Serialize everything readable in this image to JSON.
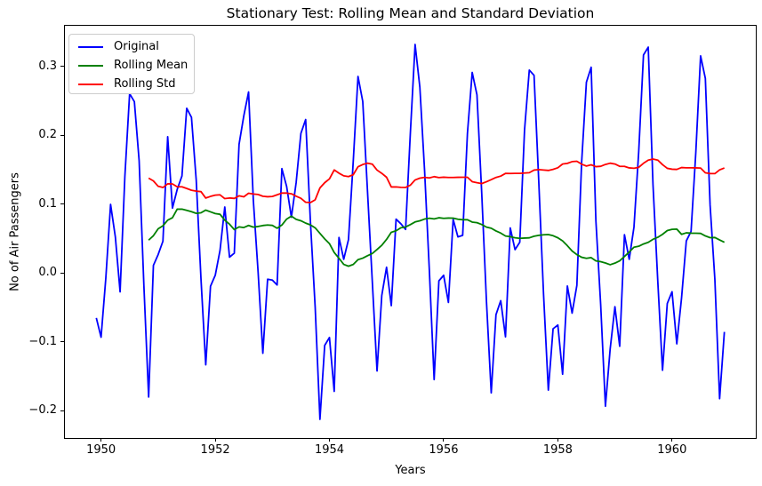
{
  "chart_data": {
    "type": "line",
    "title": "Stationary Test: Rolling Mean and Standard Deviation",
    "xlabel": "Years",
    "ylabel": "No of Air Passengers",
    "xlim": [
      1949.3667,
      1961.4667
    ],
    "ylim": [
      -0.2399,
      0.3588
    ],
    "x0": 1949.9167,
    "dx": 0.0833333,
    "grid": false,
    "legend_position": "upper left",
    "rolling_window_months": 12,
    "xticks": [
      {
        "value": 1950,
        "label": "1950"
      },
      {
        "value": 1952,
        "label": "1952"
      },
      {
        "value": 1954,
        "label": "1954"
      },
      {
        "value": 1956,
        "label": "1956"
      },
      {
        "value": 1958,
        "label": "1958"
      },
      {
        "value": 1960,
        "label": "1960"
      }
    ],
    "yticks": [
      {
        "value": 0.3,
        "label": "0.3"
      },
      {
        "value": 0.2,
        "label": "0.2"
      },
      {
        "value": 0.1,
        "label": "0.1"
      },
      {
        "value": 0.0,
        "label": "0.0"
      },
      {
        "value": -0.1,
        "label": "−0.1"
      },
      {
        "value": -0.2,
        "label": "−0.2"
      }
    ],
    "series": [
      {
        "name": "Original",
        "color": "#0000ff",
        "start_offset": 0,
        "values": [
          -0.0655,
          -0.0935,
          -0.0076,
          0.0994,
          0.0522,
          -0.0276,
          0.1398,
          0.2602,
          0.2486,
          0.1629,
          -0.0186,
          -0.1804,
          0.0108,
          0.0266,
          0.0459,
          0.1977,
          0.094,
          0.1211,
          0.1406,
          0.239,
          0.2258,
          0.1347,
          -0.009,
          -0.1336,
          -0.0194,
          -0.0035,
          0.0326,
          0.0956,
          0.0227,
          0.0285,
          0.1866,
          0.2281,
          0.2626,
          0.1054,
          0.0017,
          -0.1168,
          -0.0093,
          -0.0105,
          -0.0176,
          0.1513,
          0.1254,
          0.0808,
          0.1311,
          0.2025,
          0.2226,
          0.0744,
          -0.0501,
          -0.2128,
          -0.1054,
          -0.0939,
          -0.1722,
          0.0514,
          0.0197,
          0.0482,
          0.1619,
          0.2852,
          0.2488,
          0.118,
          -0.0119,
          -0.1425,
          -0.0328,
          0.0081,
          -0.0476,
          0.0779,
          0.0713,
          0.0631,
          0.2025,
          0.3316,
          0.2696,
          0.1478,
          0.0029,
          -0.155,
          -0.0117,
          -0.0036,
          -0.043,
          0.0776,
          0.0522,
          0.0545,
          0.2024,
          0.291,
          0.2586,
          0.1161,
          -0.0417,
          -0.1743,
          -0.0608,
          -0.0405,
          -0.0929,
          0.0652,
          0.0337,
          0.0445,
          0.2073,
          0.2944,
          0.2868,
          0.1311,
          -0.0314,
          -0.1703,
          -0.0813,
          -0.0758,
          -0.1472,
          -0.0191,
          -0.0585,
          -0.0182,
          0.1602,
          0.2768,
          0.2985,
          0.0753,
          -0.0457,
          -0.1937,
          -0.1105,
          -0.0492,
          -0.1066,
          0.0554,
          0.0197,
          0.0664,
          0.1763,
          0.3164,
          0.3278,
          0.128,
          -0.0113,
          -0.1415,
          -0.0445,
          -0.0275,
          -0.1031,
          -0.0365,
          0.0463,
          0.0602,
          0.1751,
          0.3151,
          0.2824,
          0.0982,
          -0.0092,
          -0.1827,
          -0.0858
        ]
      },
      {
        "name": "Rolling Mean",
        "color": "#008000",
        "start_offset": 11,
        "values": [
          0.0475,
          0.0539,
          0.0639,
          0.0683,
          0.0765,
          0.08,
          0.0924,
          0.0925,
          0.0907,
          0.0888,
          0.0864,
          0.0872,
          0.0911,
          0.0886,
          0.0861,
          0.085,
          0.0765,
          0.0706,
          0.0628,
          0.0667,
          0.0658,
          0.0688,
          0.0664,
          0.0673,
          0.0687,
          0.0695,
          0.0689,
          0.0648,
          0.0694,
          0.078,
          0.0823,
          0.0777,
          0.0756,
          0.0722,
          0.0696,
          0.0653,
          0.0573,
          0.0493,
          0.0424,
          0.0295,
          0.0212,
          0.0123,
          0.0096,
          0.0122,
          0.0191,
          0.0213,
          0.0249,
          0.0281,
          0.0339,
          0.04,
          0.0485,
          0.0589,
          0.0611,
          0.0654,
          0.0666,
          0.07,
          0.0739,
          0.0756,
          0.0781,
          0.0793,
          0.0783,
          0.08,
          0.0791,
          0.0795,
          0.0794,
          0.0778,
          0.0771,
          0.0771,
          0.0737,
          0.0728,
          0.0702,
          0.0664,
          0.0648,
          0.0608,
          0.0577,
          0.0535,
          0.0525,
          0.0509,
          0.0501,
          0.0505,
          0.0508,
          0.0532,
          0.0544,
          0.0553,
          0.0556,
          0.0539,
          0.0509,
          0.0464,
          0.0394,
          0.0317,
          0.0265,
          0.0226,
          0.0211,
          0.0221,
          0.0174,
          0.0162,
          0.0143,
          0.0118,
          0.0141,
          0.0174,
          0.0237,
          0.0302,
          0.0372,
          0.0386,
          0.0419,
          0.0443,
          0.0487,
          0.0516,
          0.0559,
          0.0614,
          0.0632,
          0.0635,
          0.0559,
          0.0581,
          0.0576,
          0.0575,
          0.0573,
          0.0536,
          0.0511,
          0.0513,
          0.0478,
          0.0444
        ]
      },
      {
        "name": "Rolling Std",
        "color": "#ff0000",
        "start_offset": 11,
        "values": [
          0.1375,
          0.1335,
          0.1257,
          0.1239,
          0.1292,
          0.1291,
          0.1249,
          0.1249,
          0.1225,
          0.1199,
          0.1186,
          0.1179,
          0.1086,
          0.111,
          0.1128,
          0.1133,
          0.1078,
          0.1087,
          0.1081,
          0.1118,
          0.1104,
          0.1156,
          0.1144,
          0.1138,
          0.1112,
          0.1105,
          0.1109,
          0.1133,
          0.1158,
          0.1158,
          0.1148,
          0.1113,
          0.1083,
          0.1025,
          0.102,
          0.1061,
          0.1233,
          0.1309,
          0.1365,
          0.1494,
          0.1447,
          0.1409,
          0.1398,
          0.1425,
          0.154,
          0.1573,
          0.1592,
          0.1579,
          0.1492,
          0.1445,
          0.1388,
          0.1247,
          0.1248,
          0.1241,
          0.124,
          0.1273,
          0.1349,
          0.1375,
          0.1386,
          0.1378,
          0.1397,
          0.1383,
          0.1389,
          0.1385,
          0.1385,
          0.1387,
          0.1388,
          0.1388,
          0.1324,
          0.1309,
          0.1296,
          0.1323,
          0.1353,
          0.1385,
          0.1405,
          0.1444,
          0.1443,
          0.1444,
          0.1444,
          0.1449,
          0.1454,
          0.1492,
          0.1499,
          0.1493,
          0.1487,
          0.1503,
          0.1526,
          0.158,
          0.159,
          0.1615,
          0.162,
          0.1578,
          0.1551,
          0.1569,
          0.1542,
          0.1547,
          0.1574,
          0.1592,
          0.158,
          0.1547,
          0.1546,
          0.1524,
          0.1519,
          0.1532,
          0.1591,
          0.1636,
          0.1652,
          0.1637,
          0.1571,
          0.1518,
          0.1505,
          0.1502,
          0.1529,
          0.1525,
          0.1525,
          0.1524,
          0.1522,
          0.1453,
          0.1442,
          0.1441,
          0.1495,
          0.1523
        ]
      }
    ]
  }
}
